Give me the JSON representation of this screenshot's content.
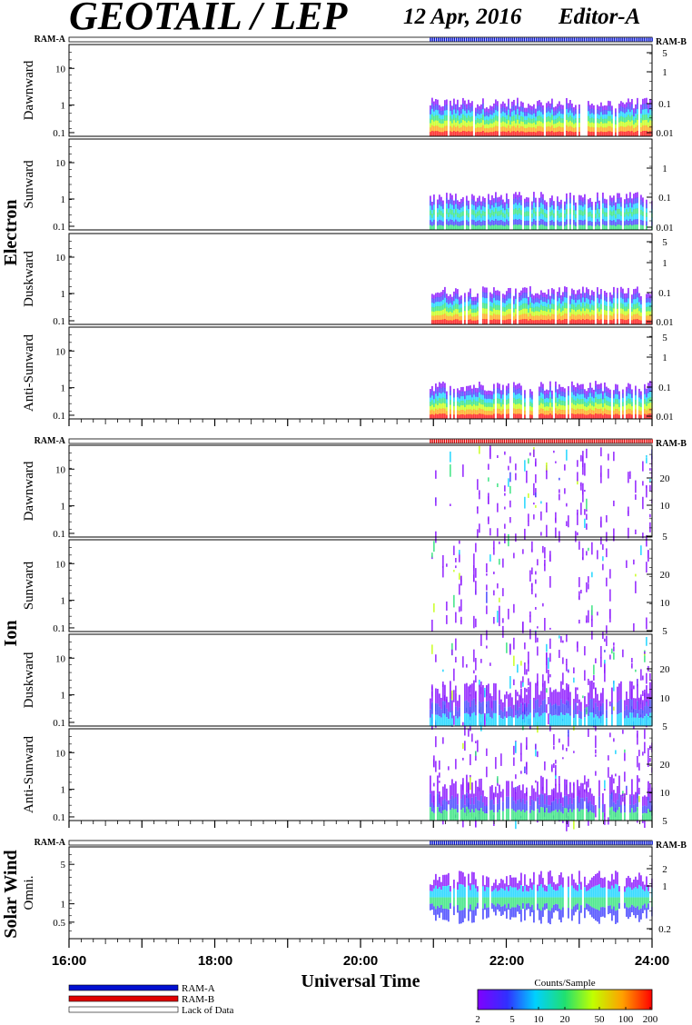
{
  "header": {
    "title": "GEOTAIL / LEP",
    "date": "12 Apr, 2016",
    "editor": "Editor-A"
  },
  "colors": {
    "ram_a": "#0010d0",
    "ram_b": "#e00000",
    "background": "#ffffff",
    "frame": "#000000"
  },
  "chart_data": [
    {
      "type": "heatmap",
      "group": "Electron",
      "direction": "Dawnward",
      "ram_left": "RAM-A",
      "ram_right": "RAM-B",
      "status_bar_mode": "RAM-A",
      "y_ticks": [
        "10",
        "1",
        "0.1"
      ],
      "y_ticks_right": [
        "5",
        "1",
        "0.1",
        "0.01"
      ],
      "data_start_hour": 20.95,
      "data_end_hour": 24.0,
      "ylabel": "Dawnward"
    },
    {
      "type": "heatmap",
      "group": "Electron",
      "direction": "Sunward",
      "y_ticks": [
        "10",
        "1",
        "0.1"
      ],
      "y_ticks_right": [
        "1",
        "0.1",
        "0.01"
      ],
      "data_start_hour": 20.95,
      "data_end_hour": 24.0,
      "ylabel": "Sunward"
    },
    {
      "type": "heatmap",
      "group": "Electron",
      "direction": "Duskward",
      "y_ticks": [
        "10",
        "1",
        "0.1"
      ],
      "y_ticks_right": [
        "5",
        "1",
        "0.1",
        "0.01"
      ],
      "data_start_hour": 20.95,
      "data_end_hour": 24.0,
      "ylabel": "Duskward"
    },
    {
      "type": "heatmap",
      "group": "Electron",
      "direction": "Anti-Sunward",
      "y_ticks": [
        "10",
        "1",
        "0.1"
      ],
      "y_ticks_right": [
        "5",
        "1",
        "0.1",
        "0.01"
      ],
      "data_start_hour": 20.95,
      "data_end_hour": 24.0,
      "ylabel": "Anti-Sunward"
    },
    {
      "type": "heatmap",
      "group": "Ion",
      "direction": "Dawnward",
      "ram_left": "RAM-A",
      "ram_right": "RAM-B",
      "status_bar_mode": "RAM-B",
      "y_ticks": [
        "10",
        "1",
        "0.1"
      ],
      "y_ticks_right": [
        "20",
        "10",
        "5"
      ],
      "data_start_hour": 20.95,
      "data_end_hour": 24.0,
      "ylabel": "Dawnward"
    },
    {
      "type": "heatmap",
      "group": "Ion",
      "direction": "Sunward",
      "y_ticks": [
        "10",
        "1",
        "0.1"
      ],
      "y_ticks_right": [
        "20",
        "10",
        "5"
      ],
      "data_start_hour": 20.95,
      "data_end_hour": 24.0,
      "ylabel": "Sunward"
    },
    {
      "type": "heatmap",
      "group": "Ion",
      "direction": "Duskward",
      "y_ticks": [
        "10",
        "1",
        "0.1"
      ],
      "y_ticks_right": [
        "20",
        "10",
        "5"
      ],
      "data_start_hour": 20.95,
      "data_end_hour": 24.0,
      "ylabel": "Duskward"
    },
    {
      "type": "heatmap",
      "group": "Ion",
      "direction": "Anti-Sunward",
      "y_ticks": [
        "10",
        "1",
        "0.1"
      ],
      "y_ticks_right": [
        "20",
        "10",
        "5"
      ],
      "data_start_hour": 20.95,
      "data_end_hour": 24.0,
      "ylabel": "Anti-Sunward"
    },
    {
      "type": "heatmap",
      "group": "Solar Wind",
      "direction": "Omni.",
      "ram_left": "RAM-A",
      "ram_right": "RAM-B",
      "status_bar_mode": "RAM-A",
      "y_ticks": [
        "5",
        "1",
        "0.5"
      ],
      "y_ticks_right": [
        "2",
        "1",
        "0.2"
      ],
      "data_start_hour": 20.95,
      "data_end_hour": 24.0,
      "ylabel": "Omni."
    }
  ],
  "groups": [
    {
      "label": "Electron"
    },
    {
      "label": "Ion"
    },
    {
      "label": "Solar Wind"
    }
  ],
  "x_axis": {
    "label": "Universal Time",
    "range_hours": [
      16,
      24
    ],
    "ticks": [
      "16:00",
      "18:00",
      "20:00",
      "22:00",
      "24:00"
    ]
  },
  "legend": {
    "ram_a": "RAM-A",
    "ram_b": "RAM-B",
    "lack": "Lack of Data"
  },
  "colorbar": {
    "title": "Counts/Sample",
    "ticks": [
      "2",
      "5",
      "10",
      "20",
      "50",
      "100",
      "200"
    ]
  }
}
